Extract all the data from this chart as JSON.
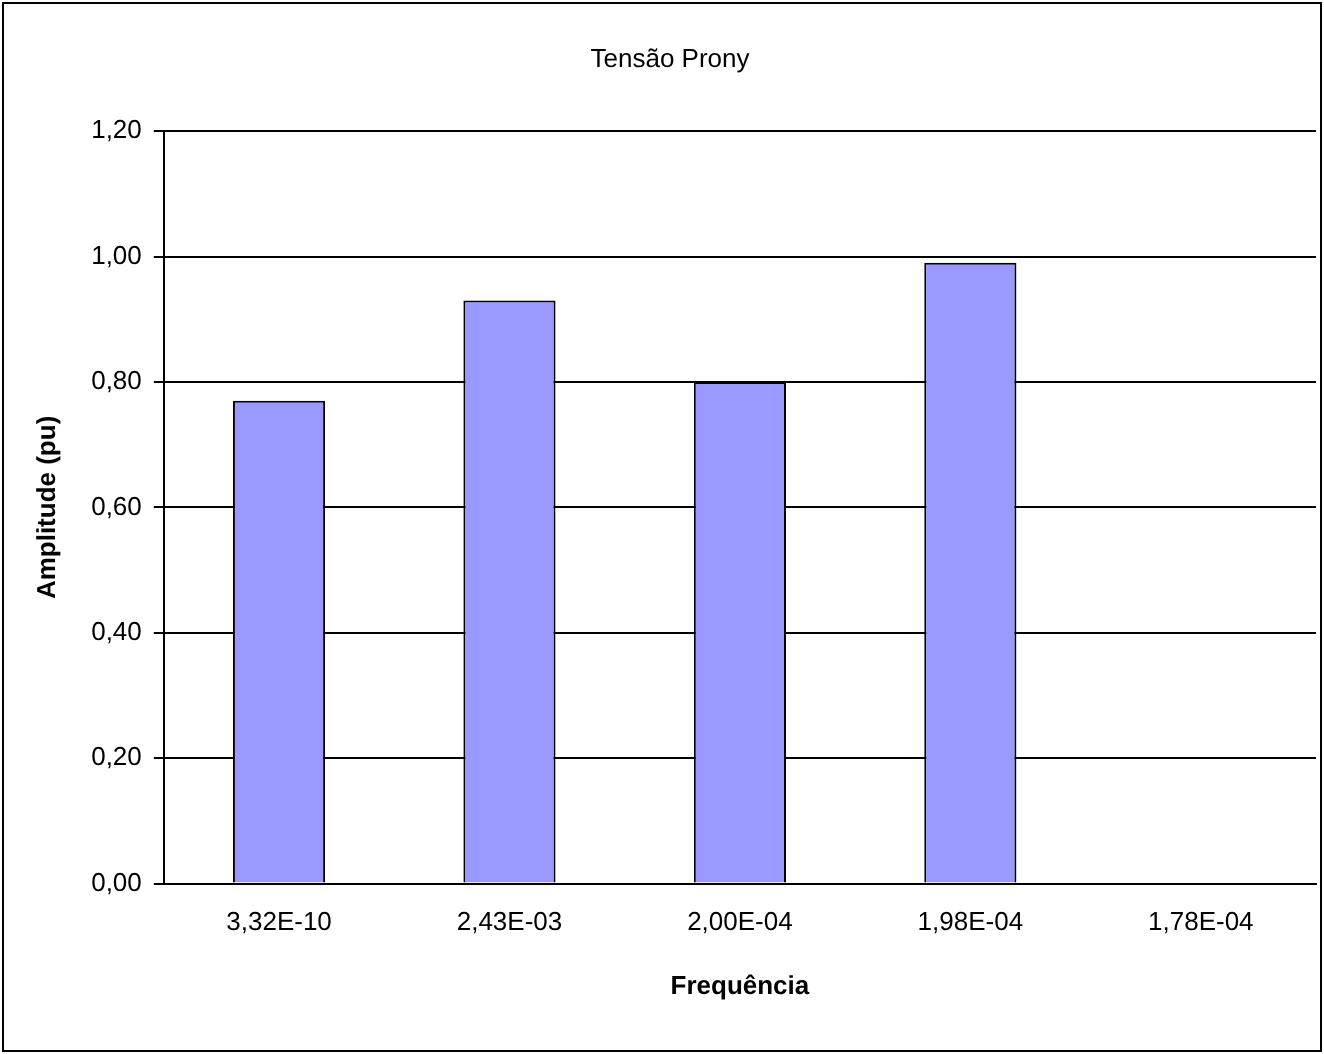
{
  "chart_data": {
    "type": "bar",
    "title": "Tensão Prony",
    "xlabel": "Frequência",
    "ylabel": "Amplitude (pu)",
    "categories": [
      "3,32E-10",
      "2,43E-03",
      "2,00E-04",
      "1,98E-04",
      "1,78E-04"
    ],
    "values": [
      0.77,
      0.93,
      0.8,
      0.99,
      0
    ],
    "color": "#9999ff",
    "ylim": [
      0,
      1.2
    ],
    "yticks": [
      {
        "value": 0,
        "label": "0,00"
      },
      {
        "value": 0.2,
        "label": "0,20"
      },
      {
        "value": 0.4,
        "label": "0,40"
      },
      {
        "value": 0.6,
        "label": "0,60"
      },
      {
        "value": 0.8,
        "label": "0,80"
      },
      {
        "value": 1.0,
        "label": "1,00"
      },
      {
        "value": 1.2,
        "label": "1,20"
      }
    ],
    "grid": "y",
    "legend": false
  }
}
